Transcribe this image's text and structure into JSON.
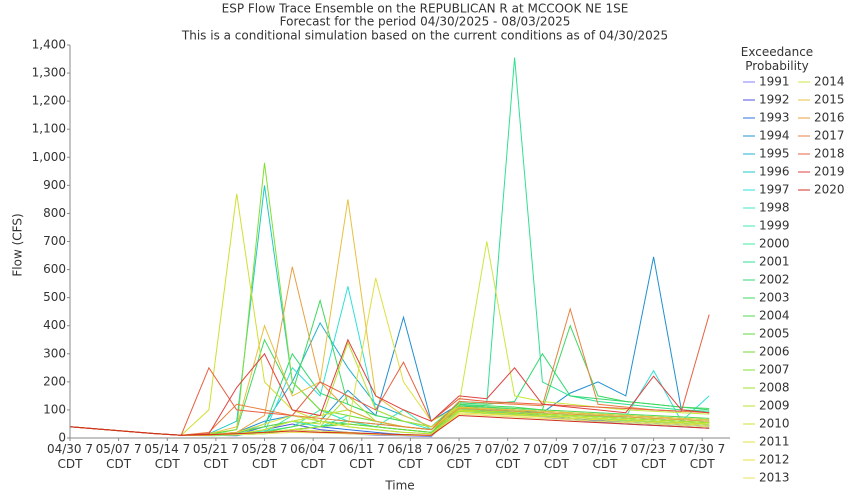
{
  "chart_data": {
    "type": "line",
    "title": "ESP Flow Trace Ensemble on the REPUBLICAN R at MCCOOK NE 1SE",
    "subtitle": "Forecast for the period 04/30/2025 - 08/03/2025",
    "note": "This is a conditional simulation based on the current conditions as of 04/30/2025",
    "x_label": "Time",
    "y_label": "Flow (CFS)",
    "legend_title": "Exceedance Probability",
    "grid": false,
    "xlim": [
      0,
      95
    ],
    "ylim": [
      0,
      1400
    ],
    "yticks": [
      0,
      100,
      200,
      300,
      400,
      500,
      600,
      700,
      800,
      900,
      {
        "value": 1000,
        "label": "1,000"
      },
      {
        "value": 1100,
        "label": "1,100"
      },
      {
        "value": 1200,
        "label": "1,200"
      },
      {
        "value": 1300,
        "label": "1,300"
      },
      {
        "value": 1400,
        "label": "1,400"
      }
    ],
    "xticks": [
      {
        "value": 0,
        "label": "04/30 7 CDT"
      },
      {
        "value": 7,
        "label": "05/07 7 CDT"
      },
      {
        "value": 14,
        "label": "05/14 7 CDT"
      },
      {
        "value": 21,
        "label": "05/21 7 CDT"
      },
      {
        "value": 28,
        "label": "05/28 7 CDT"
      },
      {
        "value": 35,
        "label": "06/04 7 CDT"
      },
      {
        "value": 42,
        "label": "06/11 7 CDT"
      },
      {
        "value": 49,
        "label": "06/18 7 CDT"
      },
      {
        "value": 56,
        "label": "06/25 7 CDT"
      },
      {
        "value": 63,
        "label": "07/02 7 CDT"
      },
      {
        "value": 70,
        "label": "07/09 7 CDT"
      },
      {
        "value": 77,
        "label": "07/16 7 CDT"
      },
      {
        "value": 84,
        "label": "07/23 7 CDT"
      },
      {
        "value": 91,
        "label": "07/30 7 CDT"
      }
    ],
    "x": [
      0,
      4,
      8,
      12,
      16,
      20,
      24,
      28,
      32,
      36,
      40,
      44,
      48,
      52,
      56,
      60,
      64,
      68,
      72,
      76,
      80,
      84,
      88,
      92
    ],
    "series": [
      {
        "name": "1991",
        "color": "#8080ff",
        "values": [
          40,
          32,
          24,
          16,
          10,
          12,
          15,
          20,
          30,
          25,
          15,
          10,
          8,
          5,
          100,
          95,
          85,
          75,
          65,
          58,
          50,
          45,
          40,
          35
        ]
      },
      {
        "name": "1992",
        "color": "#5050e0",
        "values": [
          40,
          32,
          24,
          16,
          10,
          10,
          8,
          30,
          50,
          30,
          20,
          15,
          10,
          8,
          110,
          100,
          90,
          80,
          70,
          65,
          60,
          55,
          50,
          45
        ]
      },
      {
        "name": "1993",
        "color": "#3070e0",
        "values": [
          40,
          32,
          24,
          16,
          10,
          10,
          12,
          40,
          60,
          40,
          30,
          20,
          12,
          8,
          105,
          98,
          88,
          78,
          70,
          62,
          55,
          50,
          45,
          40
        ]
      },
      {
        "name": "1994",
        "color": "#2090d0",
        "values": [
          40,
          32,
          24,
          16,
          10,
          12,
          20,
          60,
          80,
          60,
          170,
          80,
          430,
          60,
          120,
          110,
          100,
          90,
          160,
          200,
          150,
          645,
          100,
          90
        ]
      },
      {
        "name": "1995",
        "color": "#20b0d0",
        "values": [
          40,
          32,
          24,
          16,
          10,
          10,
          15,
          50,
          200,
          410,
          250,
          120,
          80,
          40,
          115,
          105,
          95,
          85,
          80,
          75,
          70,
          65,
          60,
          55
        ]
      },
      {
        "name": "1996",
        "color": "#20c8c8",
        "values": [
          40,
          32,
          24,
          16,
          10,
          15,
          60,
          900,
          200,
          100,
          60,
          40,
          30,
          20,
          100,
          92,
          85,
          78,
          70,
          65,
          60,
          55,
          50,
          45
        ]
      },
      {
        "name": "1997",
        "color": "#30e0d8",
        "values": [
          40,
          32,
          24,
          16,
          10,
          10,
          12,
          20,
          250,
          150,
          540,
          100,
          60,
          30,
          110,
          100,
          90,
          85,
          80,
          78,
          75,
          240,
          60,
          150
        ]
      },
      {
        "name": "1998",
        "color": "#40e8c8",
        "values": [
          40,
          32,
          24,
          16,
          10,
          10,
          12,
          30,
          60,
          40,
          80,
          60,
          40,
          30,
          120,
          110,
          100,
          95,
          90,
          85,
          80,
          75,
          70,
          65
        ]
      },
      {
        "name": "1999",
        "color": "#40e8b0",
        "values": [
          40,
          32,
          24,
          16,
          10,
          12,
          15,
          25,
          40,
          100,
          60,
          40,
          100,
          30,
          105,
          95,
          90,
          85,
          80,
          75,
          70,
          65,
          60,
          55
        ]
      },
      {
        "name": "2000",
        "color": "#40e8a0",
        "values": [
          40,
          32,
          24,
          16,
          10,
          8,
          10,
          20,
          80,
          60,
          40,
          30,
          20,
          15,
          95,
          88,
          82,
          76,
          70,
          66,
          62,
          58,
          54,
          50
        ]
      },
      {
        "name": "2001",
        "color": "#30e090",
        "values": [
          40,
          32,
          24,
          16,
          10,
          10,
          12,
          15,
          30,
          40,
          60,
          50,
          40,
          30,
          130,
          125,
          1355,
          200,
          150,
          130,
          120,
          110,
          100,
          95
        ]
      },
      {
        "name": "2002",
        "color": "#30d870",
        "values": [
          40,
          32,
          24,
          16,
          10,
          10,
          20,
          40,
          300,
          160,
          120,
          80,
          60,
          40,
          125,
          120,
          130,
          300,
          150,
          140,
          130,
          120,
          110,
          100
        ]
      },
      {
        "name": "2003",
        "color": "#40d860",
        "values": [
          40,
          32,
          24,
          16,
          10,
          12,
          30,
          350,
          160,
          490,
          120,
          80,
          60,
          40,
          120,
          115,
          110,
          100,
          400,
          150,
          130,
          120,
          110,
          105
        ]
      },
      {
        "name": "2004",
        "color": "#50d850",
        "values": [
          40,
          32,
          24,
          16,
          10,
          10,
          15,
          20,
          40,
          60,
          50,
          40,
          30,
          20,
          115,
          110,
          105,
          100,
          95,
          90,
          85,
          80,
          75,
          70
        ]
      },
      {
        "name": "2005",
        "color": "#60d840",
        "values": [
          40,
          32,
          24,
          16,
          10,
          12,
          20,
          40,
          60,
          80,
          100,
          60,
          40,
          30,
          110,
          105,
          100,
          95,
          90,
          85,
          80,
          75,
          70,
          65
        ]
      },
      {
        "name": "2006",
        "color": "#70d830",
        "values": [
          40,
          32,
          24,
          16,
          10,
          10,
          12,
          15,
          30,
          40,
          50,
          40,
          30,
          20,
          100,
          95,
          90,
          85,
          80,
          75,
          70,
          65,
          60,
          55
        ]
      },
      {
        "name": "2007",
        "color": "#80e030",
        "values": [
          40,
          32,
          24,
          16,
          10,
          15,
          30,
          980,
          200,
          100,
          80,
          60,
          40,
          30,
          108,
          100,
          95,
          90,
          85,
          80,
          75,
          70,
          65,
          60
        ]
      },
      {
        "name": "2008",
        "color": "#a0e030",
        "values": [
          40,
          32,
          24,
          16,
          10,
          12,
          14,
          20,
          30,
          40,
          150,
          60,
          40,
          30,
          95,
          90,
          85,
          80,
          75,
          70,
          65,
          60,
          55,
          50
        ]
      },
      {
        "name": "2009",
        "color": "#b8e030",
        "values": [
          40,
          32,
          24,
          16,
          10,
          10,
          12,
          30,
          60,
          50,
          340,
          100,
          60,
          40,
          100,
          95,
          90,
          85,
          80,
          75,
          70,
          65,
          60,
          55
        ]
      },
      {
        "name": "2010",
        "color": "#d0e030",
        "values": [
          40,
          32,
          24,
          16,
          10,
          100,
          870,
          200,
          100,
          60,
          40,
          30,
          20,
          15,
          98,
          90,
          85,
          80,
          75,
          70,
          65,
          60,
          55,
          50
        ]
      },
      {
        "name": "2011",
        "color": "#e0e040",
        "values": [
          40,
          32,
          24,
          16,
          10,
          12,
          20,
          50,
          80,
          60,
          40,
          570,
          200,
          60,
          110,
          105,
          100,
          95,
          90,
          85,
          80,
          75,
          70,
          65
        ]
      },
      {
        "name": "2012",
        "color": "#e8e040",
        "values": [
          40,
          32,
          24,
          16,
          10,
          10,
          12,
          20,
          30,
          25,
          20,
          15,
          12,
          10,
          90,
          85,
          80,
          75,
          70,
          65,
          60,
          55,
          50,
          45
        ]
      },
      {
        "name": "2013",
        "color": "#e8e060",
        "values": [
          40,
          32,
          24,
          16,
          10,
          10,
          12,
          15,
          20,
          18,
          15,
          12,
          10,
          8,
          85,
          80,
          75,
          70,
          65,
          60,
          55,
          50,
          45,
          40
        ]
      },
      {
        "name": "2014",
        "color": "#c8e840",
        "values": [
          40,
          32,
          24,
          16,
          10,
          10,
          15,
          30,
          60,
          80,
          100,
          60,
          40,
          30,
          120,
          700,
          150,
          130,
          120,
          110,
          100,
          95,
          90,
          85
        ]
      },
      {
        "name": "2015",
        "color": "#e8c040",
        "values": [
          40,
          32,
          24,
          16,
          10,
          15,
          40,
          400,
          150,
          200,
          850,
          150,
          80,
          40,
          110,
          105,
          100,
          95,
          90,
          85,
          80,
          75,
          70,
          65
        ]
      },
      {
        "name": "2016",
        "color": "#e8a040",
        "values": [
          40,
          32,
          24,
          16,
          10,
          10,
          20,
          80,
          610,
          200,
          100,
          60,
          40,
          30,
          105,
          100,
          95,
          90,
          85,
          80,
          75,
          70,
          65,
          60
        ]
      },
      {
        "name": "2017",
        "color": "#e88040",
        "values": [
          40,
          32,
          24,
          16,
          10,
          20,
          120,
          100,
          80,
          70,
          60,
          50,
          40,
          30,
          130,
          125,
          120,
          115,
          460,
          120,
          110,
          100,
          95,
          90
        ]
      },
      {
        "name": "2018",
        "color": "#e86040",
        "values": [
          40,
          32,
          24,
          16,
          10,
          250,
          100,
          90,
          80,
          200,
          150,
          100,
          270,
          60,
          140,
          130,
          125,
          120,
          115,
          110,
          105,
          100,
          95,
          440
        ]
      },
      {
        "name": "2019",
        "color": "#e04040",
        "values": [
          40,
          32,
          24,
          16,
          10,
          15,
          180,
          300,
          100,
          80,
          350,
          150,
          100,
          60,
          150,
          140,
          250,
          120,
          110,
          100,
          90,
          220,
          100,
          90
        ]
      },
      {
        "name": "2020",
        "color": "#d03020",
        "values": [
          40,
          32,
          24,
          16,
          10,
          12,
          15,
          20,
          25,
          20,
          18,
          15,
          12,
          10,
          80,
          75,
          70,
          65,
          60,
          55,
          50,
          45,
          40,
          35
        ]
      }
    ]
  }
}
